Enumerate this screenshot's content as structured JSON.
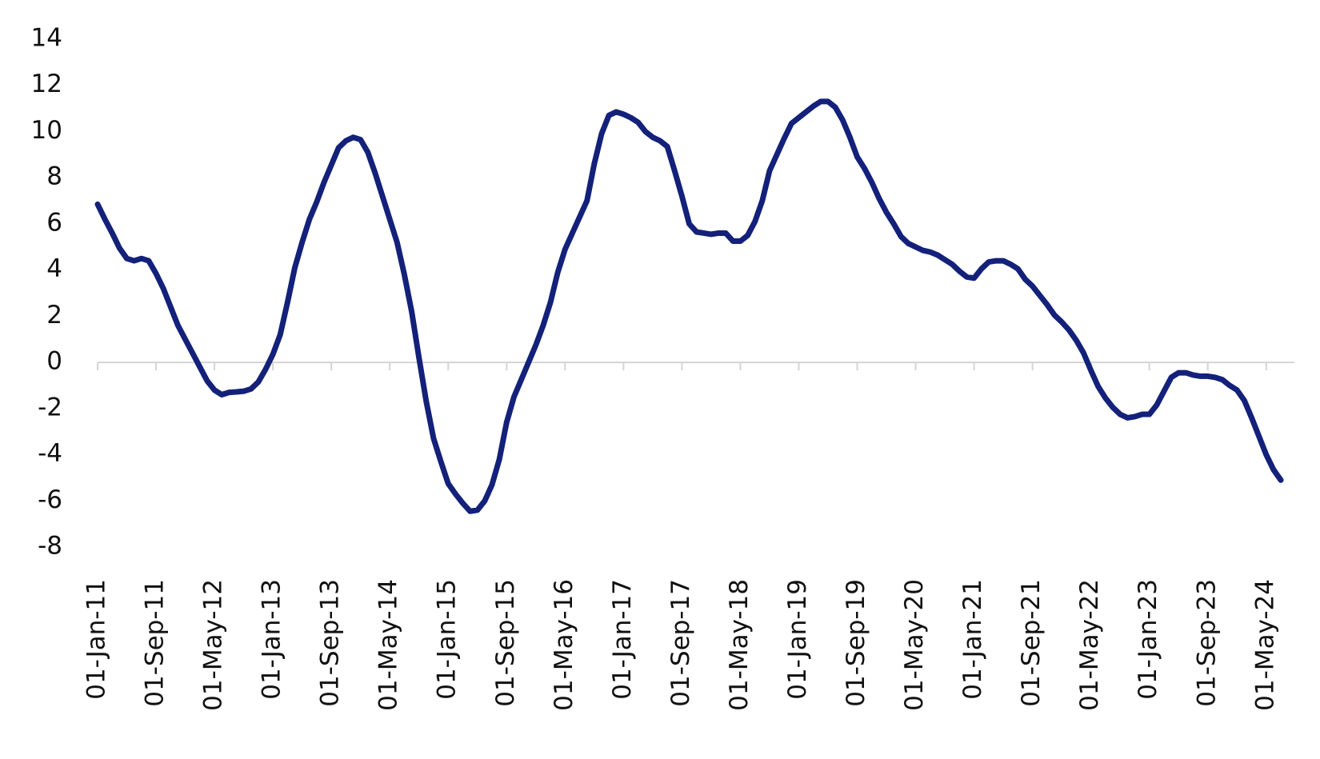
{
  "chart_data": {
    "type": "line",
    "categories": [
      "01-Jan-11",
      null,
      null,
      null,
      null,
      null,
      null,
      null,
      "01-Sep-11",
      null,
      null,
      null,
      null,
      null,
      null,
      null,
      "01-May-12",
      null,
      null,
      null,
      null,
      null,
      null,
      null,
      "01-Jan-13",
      null,
      null,
      null,
      null,
      null,
      null,
      null,
      "01-Sep-13",
      null,
      null,
      null,
      null,
      null,
      null,
      null,
      "01-May-14",
      null,
      null,
      null,
      null,
      null,
      null,
      null,
      "01-Jan-15",
      null,
      null,
      null,
      null,
      null,
      null,
      null,
      "01-Sep-15",
      null,
      null,
      null,
      null,
      null,
      null,
      null,
      "01-May-16",
      null,
      null,
      null,
      null,
      null,
      null,
      null,
      "01-Jan-17",
      null,
      null,
      null,
      null,
      null,
      null,
      null,
      "01-Sep-17",
      null,
      null,
      null,
      null,
      null,
      null,
      null,
      "01-May-18",
      null,
      null,
      null,
      null,
      null,
      null,
      null,
      "01-Jan-19",
      null,
      null,
      null,
      null,
      null,
      null,
      null,
      "01-Sep-19",
      null,
      null,
      null,
      null,
      null,
      null,
      null,
      "01-May-20",
      null,
      null,
      null,
      null,
      null,
      null,
      null,
      "01-Jan-21",
      null,
      null,
      null,
      null,
      null,
      null,
      null,
      "01-Sep-21",
      null,
      null,
      null,
      null,
      null,
      null,
      null,
      "01-May-22",
      null,
      null,
      null,
      null,
      null,
      null,
      null,
      "01-Jan-23",
      null,
      null,
      null,
      null,
      null,
      null,
      null,
      "01-Sep-23",
      null,
      null,
      null,
      null,
      null,
      null,
      null,
      "01-May-24",
      null,
      null
    ],
    "values": [
      6.85,
      6.2,
      5.6,
      4.95,
      4.5,
      4.4,
      4.5,
      4.4,
      3.85,
      3.2,
      2.4,
      1.6,
      1.0,
      0.4,
      -0.2,
      -0.8,
      -1.2,
      -1.4,
      -1.3,
      -1.28,
      -1.25,
      -1.15,
      -0.85,
      -0.3,
      0.35,
      1.2,
      2.6,
      4.1,
      5.2,
      6.2,
      6.95,
      7.8,
      8.55,
      9.3,
      9.6,
      9.75,
      9.65,
      9.1,
      8.2,
      7.2,
      6.2,
      5.2,
      3.8,
      2.2,
      0.2,
      -1.7,
      -3.3,
      -4.3,
      -5.25,
      -5.7,
      -6.1,
      -6.45,
      -6.4,
      -6.0,
      -5.3,
      -4.2,
      -2.6,
      -1.5,
      -0.75,
      0.0,
      0.75,
      1.6,
      2.6,
      3.9,
      4.9,
      5.6,
      6.3,
      7.0,
      8.6,
      9.9,
      10.7,
      10.85,
      10.75,
      10.6,
      10.4,
      10.0,
      9.75,
      9.6,
      9.35,
      8.3,
      7.2,
      6.0,
      5.65,
      5.6,
      5.55,
      5.6,
      5.6,
      5.25,
      5.25,
      5.5,
      6.1,
      7.0,
      8.3,
      9.0,
      9.7,
      10.35,
      10.6,
      10.85,
      11.1,
      11.3,
      11.3,
      11.05,
      10.5,
      9.75,
      8.9,
      8.4,
      7.8,
      7.1,
      6.5,
      6.0,
      5.45,
      5.15,
      5.0,
      4.85,
      4.78,
      4.65,
      4.45,
      4.25,
      3.95,
      3.7,
      3.65,
      4.05,
      4.35,
      4.4,
      4.4,
      4.25,
      4.05,
      3.6,
      3.3,
      2.9,
      2.5,
      2.05,
      1.75,
      1.4,
      0.95,
      0.4,
      -0.35,
      -1.05,
      -1.55,
      -1.95,
      -2.25,
      -2.4,
      -2.35,
      -2.25,
      -2.25,
      -1.85,
      -1.25,
      -0.65,
      -0.45,
      -0.45,
      -0.55,
      -0.6,
      -0.6,
      -0.65,
      -0.75,
      -1.0,
      -1.2,
      -1.65,
      -2.4,
      -3.2,
      -4.0,
      -4.65,
      -5.1
    ],
    "color": "#13217a",
    "ylim": [
      -8,
      14
    ],
    "yticks": [
      -8,
      -6,
      -4,
      -2,
      0,
      2,
      4,
      6,
      8,
      10,
      12,
      14
    ],
    "grid": false
  }
}
